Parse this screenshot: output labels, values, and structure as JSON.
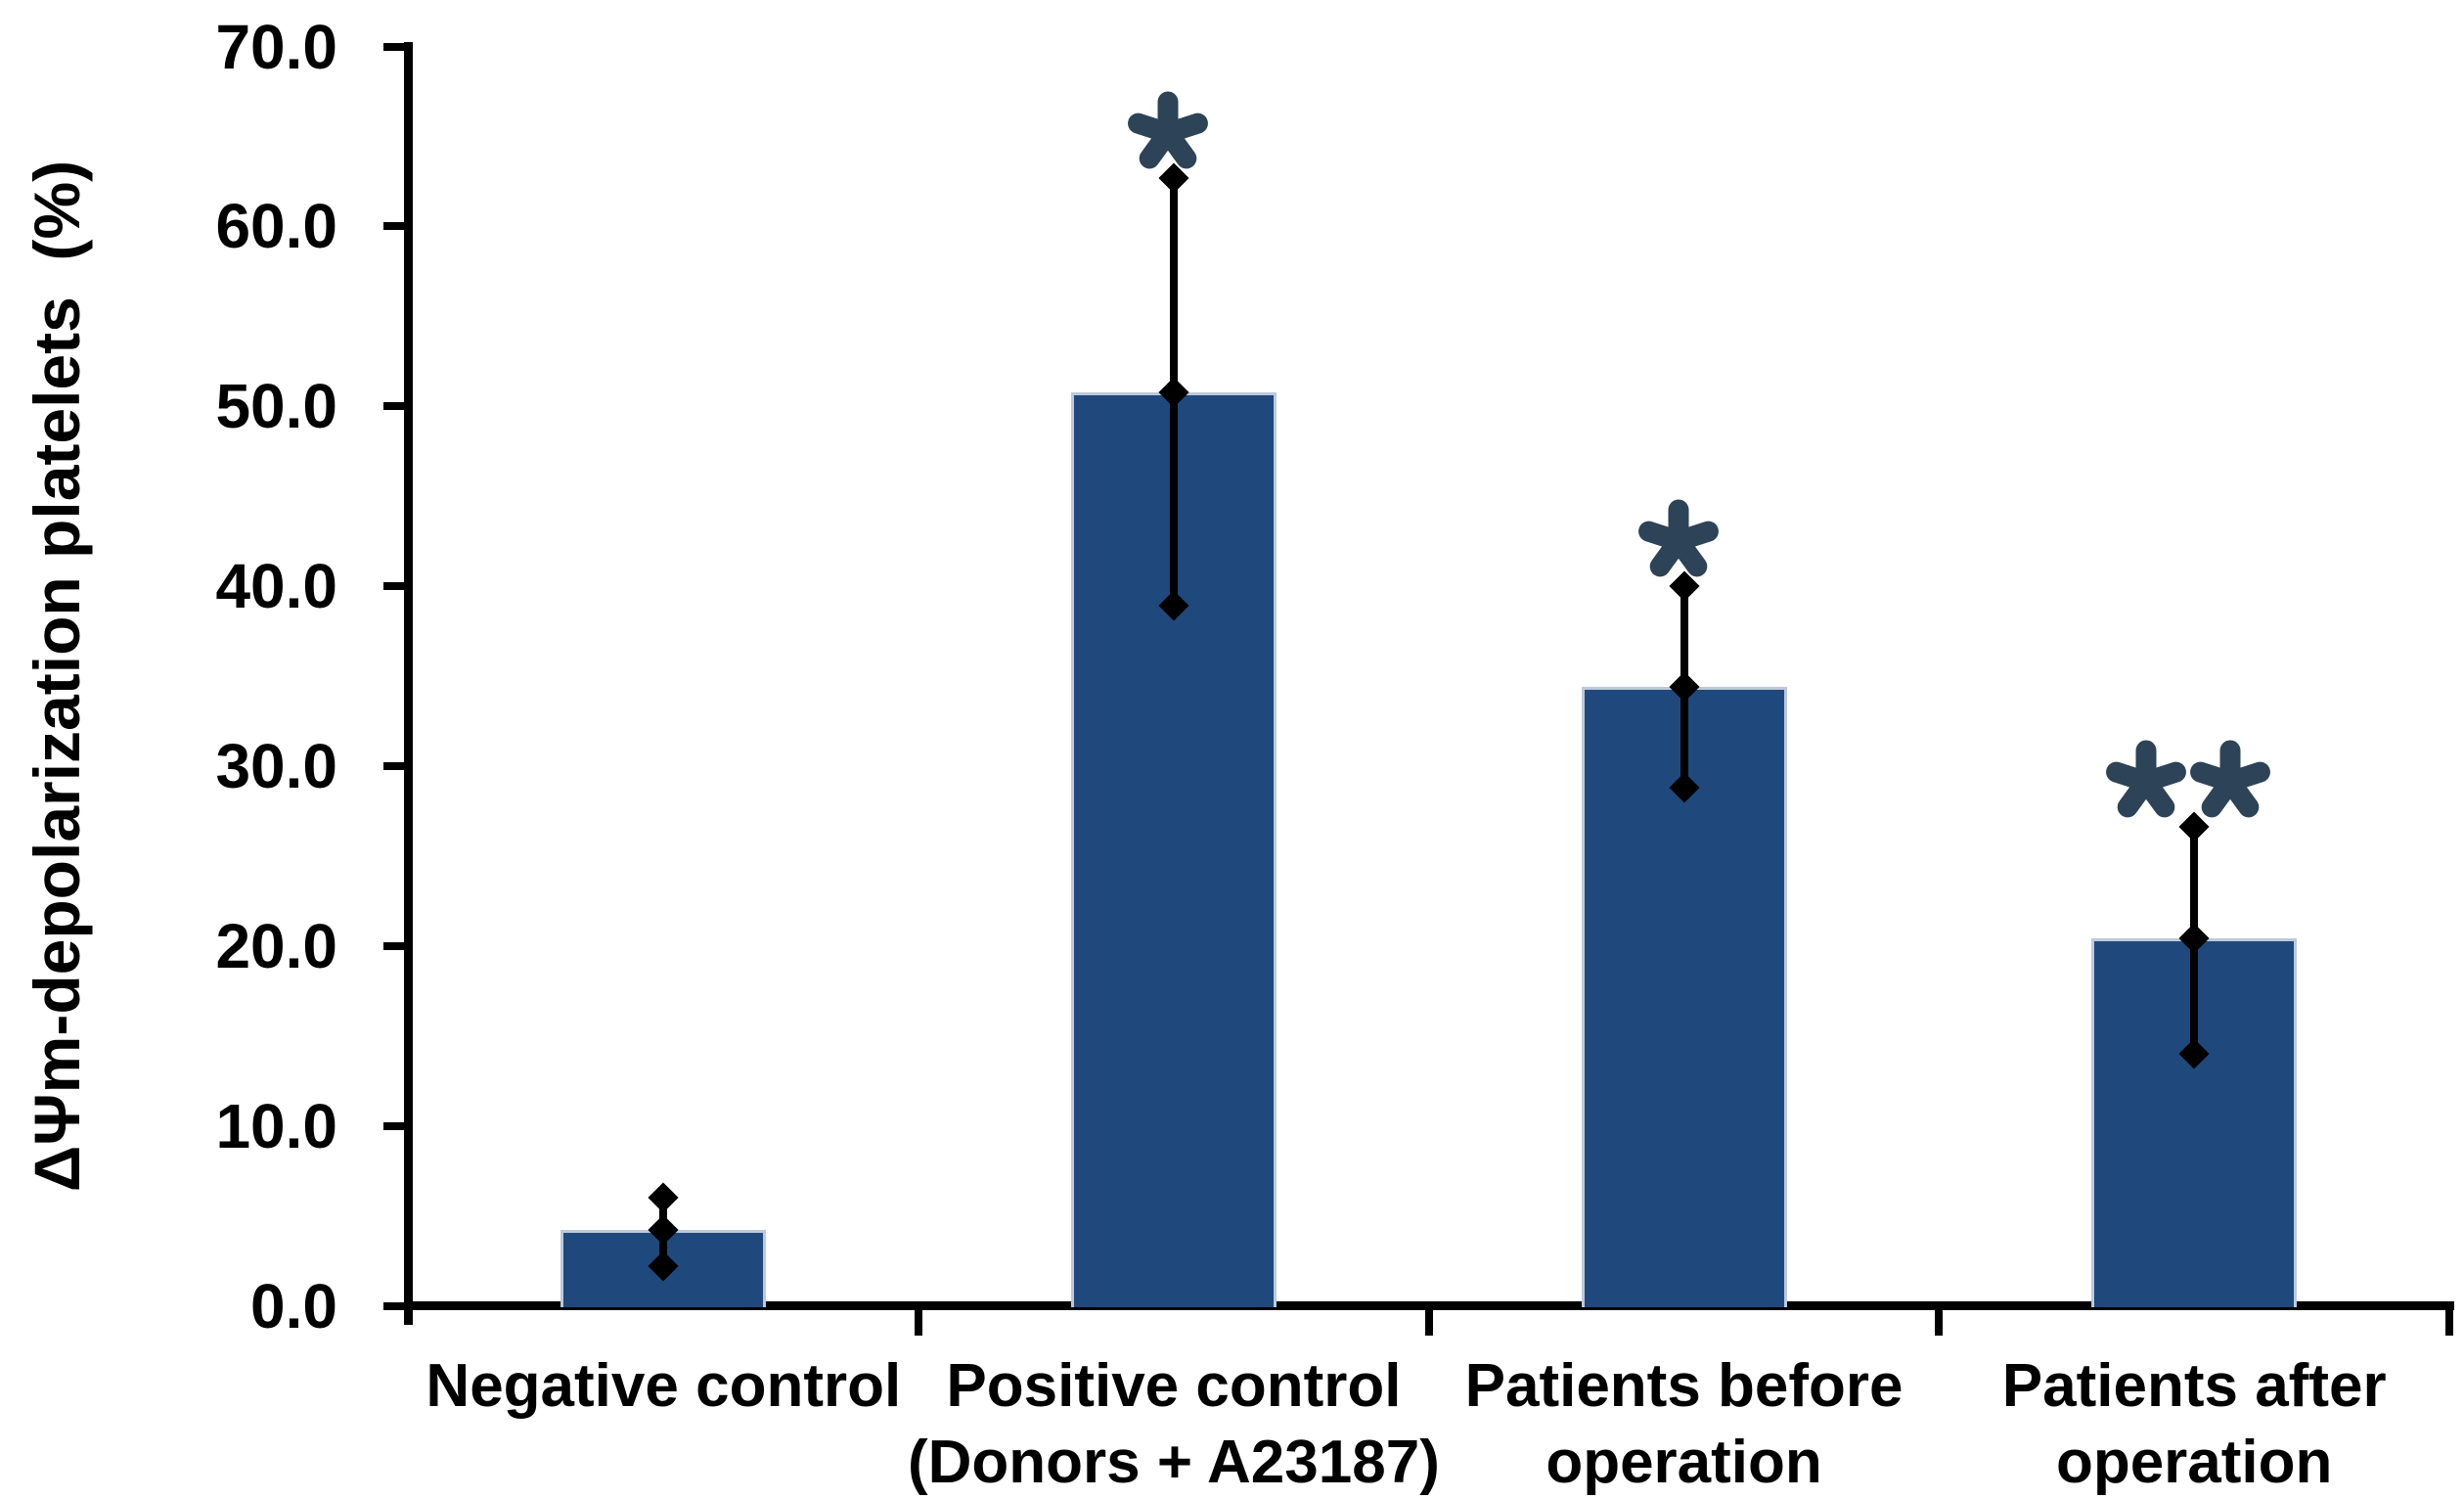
{
  "chart_data": {
    "type": "bar",
    "title": "",
    "ylabel": "ΔΨm-depolarization platelets  (%)",
    "xlabel": "",
    "ylim": [
      0,
      70
    ],
    "ytick_step": 10,
    "ytick_labels": [
      "70.0",
      "60.0",
      "50.0",
      "40.0",
      "30.0",
      "20.0",
      "10.0",
      "0.0"
    ],
    "grid": false,
    "legend": null,
    "categories": [
      "Negative control",
      "Positive control (Donors + A23187)",
      "Patients before operation",
      "Patients after operation"
    ],
    "category_label_lines": [
      [
        "Negative control"
      ],
      [
        "Positive control",
        "(Donors + A23187)"
      ],
      [
        "Patients before",
        "operation"
      ],
      [
        "Patients after",
        "operation"
      ]
    ],
    "series": [
      {
        "name": "ΔΨm-depolarization platelets (%)",
        "values": [
          4.2,
          50.8,
          34.4,
          20.4
        ],
        "error_upper_abs": [
          6.0,
          62.7,
          40.0,
          26.6
        ],
        "error_lower_abs": [
          2.2,
          38.9,
          28.8,
          14.0
        ]
      }
    ],
    "significance_markers": [
      "",
      "*",
      "*",
      "**"
    ],
    "error_marker": "diamond",
    "colors": {
      "bar_fill": "#1f497d",
      "bar_border": "#bdc9da",
      "error_bar": "#000000",
      "axis": "#000000",
      "text": "#000000",
      "significance": "#2d4357"
    }
  }
}
